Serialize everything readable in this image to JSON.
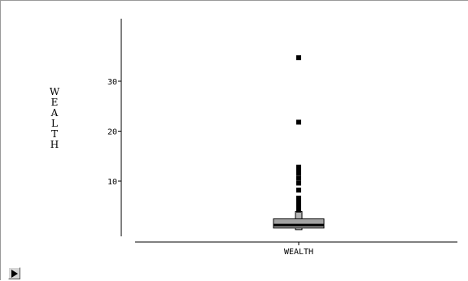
{
  "chart_data": {
    "type": "boxplot",
    "xlabel": "WEALTH",
    "ylabel": "WEALTH",
    "categories": [
      "WEALTH"
    ],
    "ylim": [
      0,
      36
    ],
    "yticks": [
      10,
      20,
      30
    ],
    "ytick_labels": [
      "10",
      "20",
      "30"
    ],
    "grid": false,
    "box": {
      "min": 0.3,
      "q1": 0.6,
      "median": 1.2,
      "q3": 1.8,
      "whisker_high": 3.9
    },
    "outliers": [
      4.2,
      4.6,
      5.0,
      5.4,
      5.8,
      6.2,
      6.6,
      8.2,
      9.6,
      10.6,
      11.6,
      12.3,
      12.8,
      21.8,
      34.7
    ],
    "colors": {
      "marks": "#000000",
      "box_fill": "#b5b5b5",
      "axis": "#000000"
    }
  },
  "controls": {
    "play_icon": "play-icon"
  }
}
